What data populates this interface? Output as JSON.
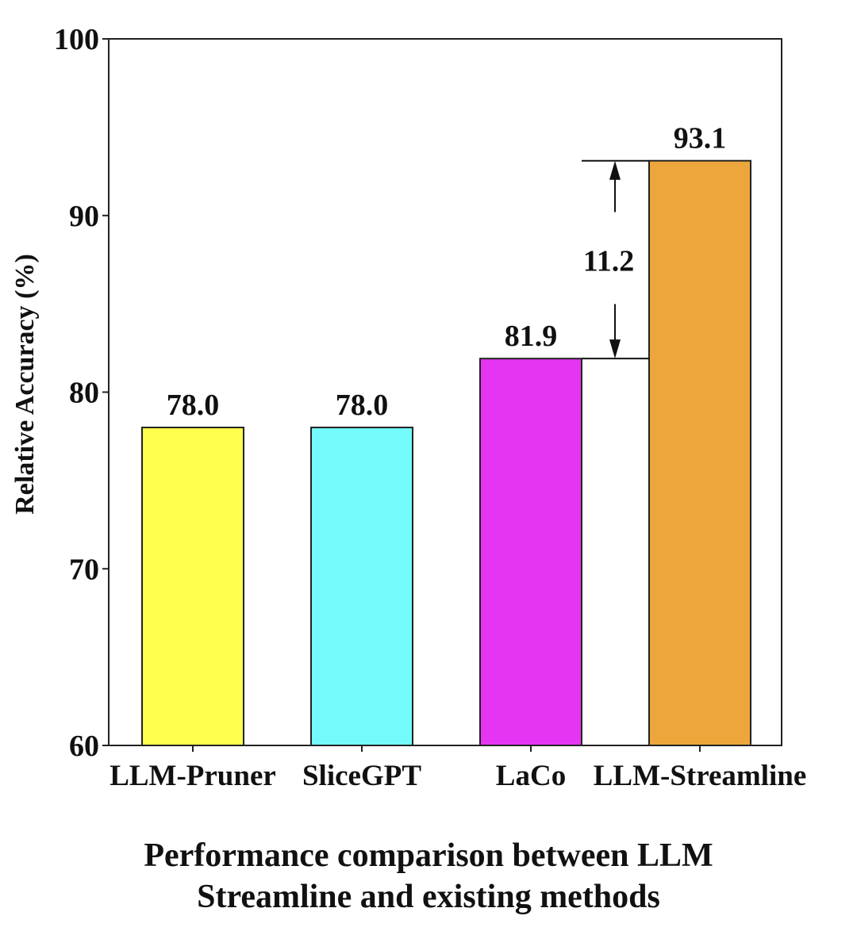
{
  "chart_data": {
    "type": "bar",
    "title": "",
    "xlabel": "",
    "ylabel": "Relative Accuracy (%)",
    "ylim": [
      60,
      100
    ],
    "yticks": [
      "100",
      "90",
      "80",
      "70",
      "60"
    ],
    "categories": [
      "LLM-Pruner",
      "SliceGPT",
      "LaCo",
      "LLM-Streamline"
    ],
    "values": [
      78.0,
      78.0,
      81.9,
      93.1
    ],
    "value_labels": [
      "78.0",
      "78.0",
      "81.9",
      "93.1"
    ],
    "colors": [
      "#ffff4d",
      "#73fbfb",
      "#e535f2",
      "#eda63b"
    ],
    "grid": false,
    "annotations": [
      {
        "text": "11.2",
        "from_value": 81.9,
        "to_value": 93.1,
        "between": [
          "LaCo",
          "LLM-Streamline"
        ]
      }
    ]
  },
  "caption": {
    "line1": "Performance comparison between LLM",
    "line2": "Streamline and existing methods"
  }
}
